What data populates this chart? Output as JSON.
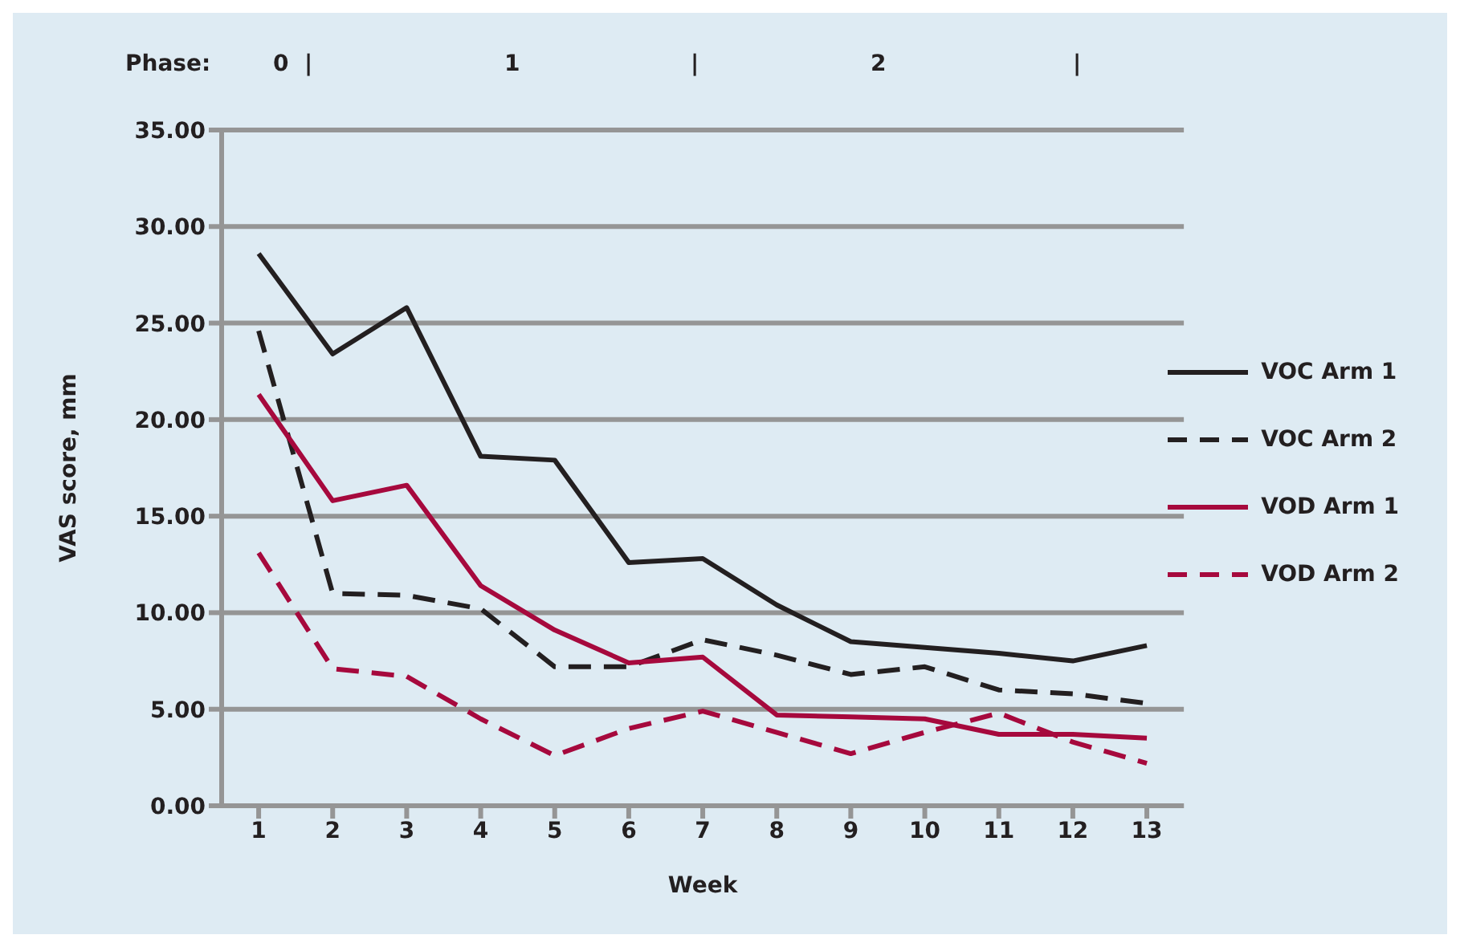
{
  "chart_data": {
    "type": "line",
    "xlabel": "Week",
    "ylabel": "VAS score,  mm",
    "annotations": [
      "Phase:",
      "0  |",
      "1",
      "|",
      "2",
      "|"
    ],
    "x": [
      1,
      2,
      3,
      4,
      5,
      6,
      7,
      8,
      9,
      10,
      11,
      12,
      13
    ],
    "xlim": [
      0.5,
      13.5
    ],
    "xticks": [
      1,
      2,
      3,
      4,
      5,
      6,
      7,
      8,
      9,
      10,
      11,
      12,
      13
    ],
    "ylim": [
      0,
      35
    ],
    "yticks": [
      {
        "value": 0,
        "label": "0.00"
      },
      {
        "value": 5,
        "label": "5.00"
      },
      {
        "value": 10,
        "label": "10.00"
      },
      {
        "value": 15,
        "label": "15.00"
      },
      {
        "value": 20,
        "label": "20.00"
      },
      {
        "value": 25,
        "label": "25.00"
      },
      {
        "value": 30,
        "label": "30.00"
      },
      {
        "value": 35,
        "label": "35.00"
      }
    ],
    "grid": "y",
    "legend": "right",
    "marker": "none",
    "series": [
      {
        "name": "VOC Arm 1",
        "color": "#231f20",
        "line_style": "solid",
        "values": [
          28.6,
          23.4,
          25.8,
          18.1,
          17.9,
          12.6,
          12.8,
          10.4,
          8.5,
          8.2,
          7.9,
          7.5,
          8.3
        ]
      },
      {
        "name": "VOC Arm 2",
        "color": "#231f20",
        "line_style": "dashed",
        "values": [
          24.6,
          11.0,
          10.9,
          10.2,
          7.2,
          7.2,
          8.6,
          7.8,
          6.8,
          7.2,
          6.0,
          5.8,
          5.3
        ]
      },
      {
        "name": "VOD Arm 1",
        "color": "#a6093d",
        "line_style": "solid",
        "values": [
          21.3,
          15.8,
          16.6,
          11.4,
          9.1,
          7.4,
          7.7,
          4.7,
          4.6,
          4.5,
          3.7,
          3.7,
          3.5
        ]
      },
      {
        "name": "VOD Arm 2",
        "color": "#a6093d",
        "line_style": "dashed",
        "values": [
          13.1,
          7.1,
          6.7,
          4.5,
          2.6,
          4.0,
          4.9,
          3.8,
          2.7,
          3.8,
          4.8,
          3.3,
          2.2
        ]
      }
    ]
  }
}
